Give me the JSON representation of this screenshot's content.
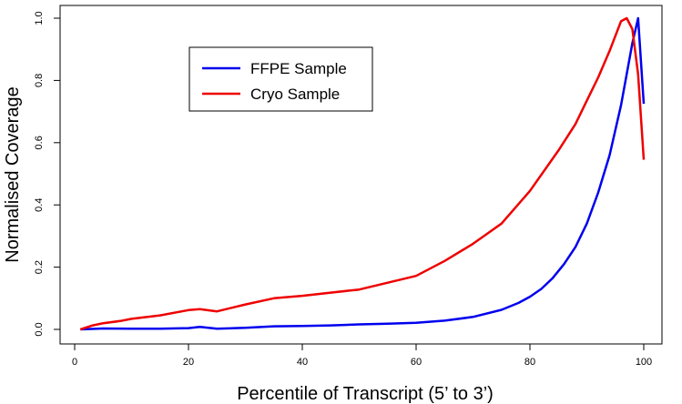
{
  "chart_data": {
    "type": "line",
    "xlabel": "Percentile of Transcript (5’ to 3’)",
    "ylabel": "Normalised Coverage",
    "xlim": [
      0,
      100
    ],
    "ylim": [
      0,
      1.0
    ],
    "xticks": [
      0,
      20,
      40,
      60,
      80,
      100
    ],
    "yticks": [
      0.0,
      0.2,
      0.4,
      0.6,
      0.8,
      1.0
    ],
    "xtick_labels": [
      "0",
      "20",
      "40",
      "60",
      "80",
      "100"
    ],
    "ytick_labels": [
      "0.0",
      "0.2",
      "0.4",
      "0.6",
      "0.8",
      "1.0"
    ],
    "grid": false,
    "legend_position": "top-left",
    "series": [
      {
        "name": "FFPE Sample",
        "color": "#0000ee",
        "x": [
          1,
          5,
          10,
          15,
          20,
          22,
          25,
          30,
          35,
          40,
          45,
          50,
          55,
          60,
          65,
          70,
          75,
          78,
          80,
          82,
          84,
          86,
          88,
          90,
          92,
          94,
          96,
          98,
          99,
          100
        ],
        "y": [
          0.0,
          0.003,
          0.002,
          0.002,
          0.004,
          0.008,
          0.002,
          0.005,
          0.01,
          0.011,
          0.013,
          0.016,
          0.018,
          0.021,
          0.028,
          0.04,
          0.063,
          0.085,
          0.105,
          0.13,
          0.165,
          0.21,
          0.265,
          0.34,
          0.44,
          0.56,
          0.72,
          0.92,
          1.0,
          0.725
        ]
      },
      {
        "name": "Cryo Sample",
        "color": "#ee0000",
        "x": [
          1,
          3,
          5,
          8,
          10,
          15,
          20,
          22,
          25,
          30,
          35,
          40,
          45,
          50,
          55,
          60,
          65,
          70,
          75,
          80,
          85,
          88,
          90,
          92,
          94,
          96,
          97,
          98,
          99,
          100
        ],
        "y": [
          0.0,
          0.012,
          0.02,
          0.027,
          0.034,
          0.045,
          0.062,
          0.065,
          0.058,
          0.08,
          0.1,
          0.108,
          0.118,
          0.128,
          0.15,
          0.172,
          0.22,
          0.275,
          0.34,
          0.445,
          0.575,
          0.66,
          0.735,
          0.81,
          0.895,
          0.99,
          1.0,
          0.965,
          0.82,
          0.545
        ]
      }
    ]
  }
}
